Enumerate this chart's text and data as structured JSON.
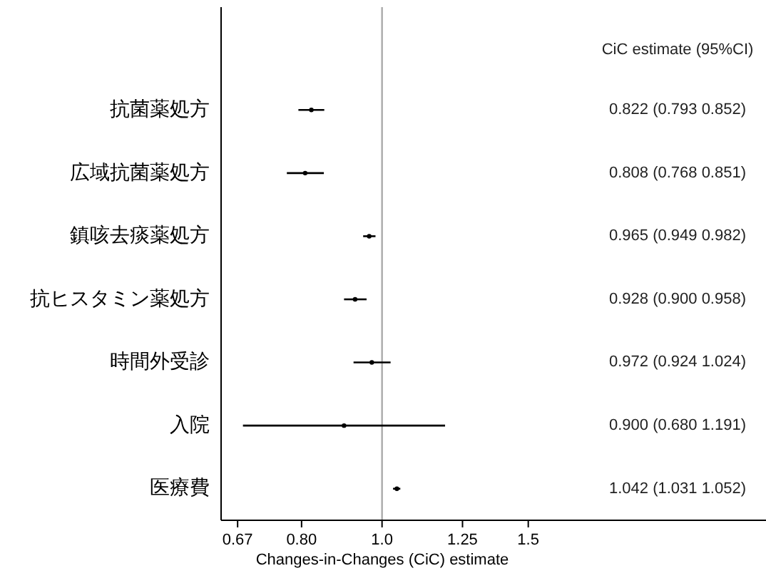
{
  "chart_data": {
    "type": "scatter",
    "orientation": "horizontal",
    "xlabel": "Changes-in-Changes (CiC) estimate",
    "categories": [
      "抗菌薬処方",
      "広域抗菌薬処方",
      "鎮咳去痰薬処方",
      "抗ヒスタミン薬処方",
      "時間外受診",
      "入院",
      "医療費"
    ],
    "values": [
      0.822,
      0.808,
      0.965,
      0.928,
      0.972,
      0.9,
      1.042
    ],
    "errors": [
      [
        0.793,
        0.852
      ],
      [
        0.768,
        0.851
      ],
      [
        0.949,
        0.982
      ],
      [
        0.9,
        0.958
      ],
      [
        0.924,
        1.024
      ],
      [
        0.68,
        1.191
      ],
      [
        1.031,
        1.052
      ]
    ],
    "color": "#000000",
    "marker": "circle",
    "log": "x",
    "grid": false,
    "xlim": [
      0.64,
      2.9
    ],
    "xticks": [
      0.67,
      {
        "value": 0.8,
        "label": "0.80"
      },
      {
        "value": 1,
        "label": "1.0"
      },
      1.25,
      1.5
    ],
    "ref_lines": [
      {
        "axis": "x",
        "value": 1,
        "color": "#aaaaaa"
      }
    ],
    "annotations": [
      "CiC estimate (95%CI)",
      "0.822 (0.793 0.852)",
      "0.808 (0.768 0.851)",
      "0.965 (0.949 0.982)",
      "0.928 (0.900 0.958)",
      "0.972 (0.924 1.024)",
      "0.900 (0.680 1.191)",
      "1.042 (1.031 1.052)"
    ]
  }
}
